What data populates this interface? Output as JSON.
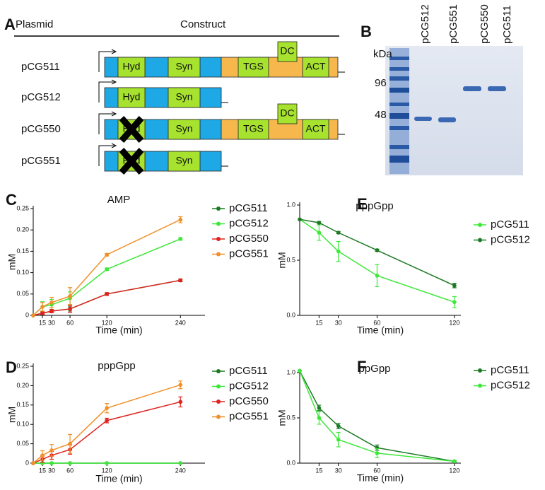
{
  "panel_a": {
    "letter": "A",
    "header": [
      "Plasmid",
      "Construct"
    ],
    "rows": [
      {
        "label": "pCG511",
        "domains": [
          "Hyd",
          "Syn",
          "TGS",
          "DC",
          "ACT"
        ],
        "knockout": false
      },
      {
        "label": "pCG512",
        "domains": [
          "Hyd",
          "Syn"
        ],
        "knockout": false
      },
      {
        "label": "pCG550",
        "domains": [
          "Hyd",
          "Syn",
          "TGS",
          "DC",
          "ACT"
        ],
        "knockout": true
      },
      {
        "label": "pCG551",
        "domains": [
          "Hyd",
          "Syn"
        ],
        "knockout": true
      }
    ]
  },
  "panel_b": {
    "letter": "B",
    "lanes": [
      "pCG512",
      "pCG551",
      "pCG550",
      "pCG511"
    ],
    "unit": "kDa",
    "markers": [
      "96",
      "48"
    ]
  },
  "chart_data": [
    {
      "type": "line",
      "panel_label": "C",
      "title": "AMP",
      "x_label": "Time (min)",
      "y_label": "mM",
      "x": [
        0,
        15,
        30,
        60,
        120,
        240
      ],
      "xlim": [
        0,
        280
      ],
      "xticks": [
        15,
        30,
        60,
        120,
        240
      ],
      "ylim": [
        0,
        0.25
      ],
      "yticks": [
        0,
        0.05,
        {
          "value": 0.1,
          "label": "0.10"
        },
        0.15,
        {
          "value": 0.2,
          "label": "0.20"
        },
        0.25
      ],
      "series": [
        {
          "name": "pCG511",
          "color": "#1d7a24",
          "values": [
            0,
            0.005,
            0.01,
            0.015,
            0.05,
            0.082
          ],
          "errors": [
            0,
            0.003,
            0.004,
            0.005,
            0.003,
            0.003
          ]
        },
        {
          "name": "pCG512",
          "color": "#3ee83a",
          "values": [
            0,
            0.02,
            0.025,
            0.04,
            0.108,
            0.179
          ],
          "errors": [
            0,
            0.012,
            0.012,
            0.015,
            0.003,
            0.003
          ]
        },
        {
          "name": "pCG550",
          "color": "#e0231e",
          "values": [
            0,
            0.005,
            0.01,
            0.015,
            0.05,
            0.082
          ],
          "errors": [
            0,
            0.003,
            0.004,
            0.008,
            0.003,
            0.003
          ]
        },
        {
          "name": "pCG551",
          "color": "#f0902a",
          "values": [
            0,
            0.02,
            0.03,
            0.045,
            0.142,
            0.224
          ],
          "errors": [
            0,
            0.01,
            0.012,
            0.02,
            0.003,
            0.007
          ]
        }
      ]
    },
    {
      "type": "line",
      "panel_label": "D",
      "title": "pppGpp",
      "x_label": "Time (min)",
      "y_label": "mM",
      "x": [
        0,
        15,
        30,
        60,
        120,
        240
      ],
      "xlim": [
        0,
        280
      ],
      "xticks": [
        15,
        30,
        60,
        120,
        240
      ],
      "ylim": [
        0,
        0.25
      ],
      "yticks": [
        0,
        0.05,
        {
          "value": 0.1,
          "label": "0.10"
        },
        0.15,
        {
          "value": 0.2,
          "label": "0.20"
        },
        0.25
      ],
      "series": [
        {
          "name": "pCG511",
          "color": "#1d7a24",
          "values": [
            0,
            0,
            0,
            0,
            0,
            0
          ],
          "errors": [
            0,
            0,
            0,
            0,
            0,
            0
          ]
        },
        {
          "name": "pCG512",
          "color": "#3ee83a",
          "values": [
            0,
            0,
            0,
            0,
            0,
            0
          ],
          "errors": [
            0,
            0,
            0,
            0,
            0,
            0
          ]
        },
        {
          "name": "pCG550",
          "color": "#e0231e",
          "values": [
            0,
            0.01,
            0.02,
            0.035,
            0.11,
            0.158
          ],
          "errors": [
            0,
            0.008,
            0.01,
            0.012,
            0.006,
            0.013
          ]
        },
        {
          "name": "pCG551",
          "color": "#f0902a",
          "values": [
            0,
            0.02,
            0.033,
            0.05,
            0.142,
            0.202
          ],
          "errors": [
            0,
            0.012,
            0.015,
            0.024,
            0.012,
            0.01
          ]
        }
      ]
    },
    {
      "type": "line",
      "panel_label": "E",
      "title": "pppGpp",
      "x_label": "Time (min)",
      "y_label": "mM",
      "x": [
        0,
        15,
        30,
        60,
        120
      ],
      "xlim": [
        0,
        125
      ],
      "xticks": [
        15,
        30,
        60,
        120
      ],
      "ylim": [
        0,
        1.0
      ],
      "yticks": [
        {
          "value": 0,
          "label": "0.0"
        },
        {
          "value": 0.5,
          "label": "0.5"
        },
        {
          "value": 1.0,
          "label": "1.0"
        }
      ],
      "series": [
        {
          "name": "pCG511",
          "color": "#3ee83a",
          "values": [
            0.87,
            0.75,
            0.58,
            0.36,
            0.12
          ],
          "errors": [
            0,
            0.07,
            0.09,
            0.1,
            0.05
          ]
        },
        {
          "name": "pCG512",
          "color": "#1d7a24",
          "values": [
            0.87,
            0.84,
            0.75,
            0.59,
            0.27
          ],
          "errors": [
            0,
            0.01,
            0.01,
            0.01,
            0.02
          ]
        }
      ]
    },
    {
      "type": "line",
      "panel_label": "F",
      "title": "ppGpp",
      "x_label": "Time (min)",
      "y_label": "mM",
      "x": [
        0,
        15,
        30,
        60,
        120
      ],
      "xlim": [
        0,
        125
      ],
      "xticks": [
        15,
        30,
        60,
        120
      ],
      "ylim": [
        0,
        1.0
      ],
      "yticks": [
        {
          "value": 0,
          "label": "0.0"
        },
        {
          "value": 0.5,
          "label": "0.5"
        },
        {
          "value": 1.0,
          "label": "1.0"
        }
      ],
      "series": [
        {
          "name": "pCG511",
          "color": "#1d7a24",
          "values": [
            1.02,
            0.61,
            0.41,
            0.17,
            0.02
          ],
          "errors": [
            0,
            0.03,
            0.03,
            0.03,
            0.01
          ]
        },
        {
          "name": "pCG512",
          "color": "#3ee83a",
          "values": [
            1.02,
            0.5,
            0.26,
            0.11,
            0.02
          ],
          "errors": [
            0,
            0.07,
            0.08,
            0.05,
            0.01
          ]
        }
      ]
    }
  ]
}
